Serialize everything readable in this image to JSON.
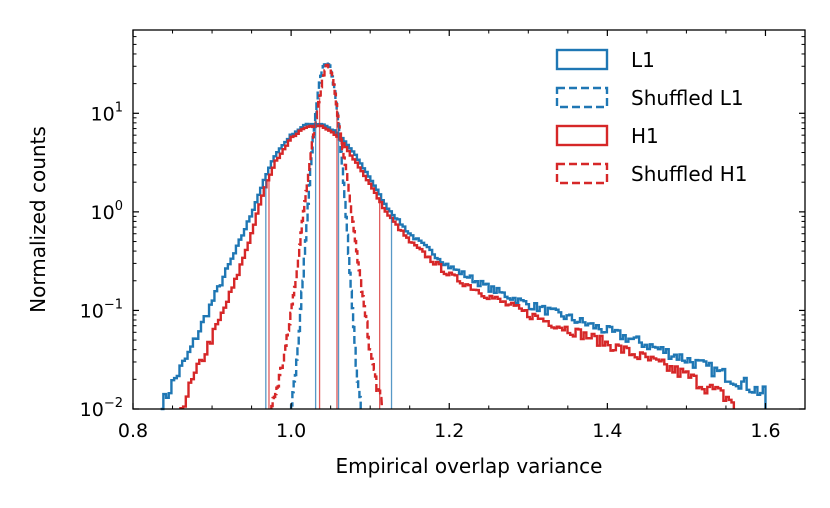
{
  "chart_data": {
    "type": "histogram-step",
    "xlabel": "Empirical overlap variance",
    "ylabel": "Normalized counts",
    "xlim": [
      0.8,
      1.65
    ],
    "ylim": [
      0.01,
      70
    ],
    "yscale": "log",
    "x_ticks": [
      {
        "value": 0.8,
        "label": "0.8"
      },
      {
        "value": 1.0,
        "label": "1.0"
      },
      {
        "value": 1.2,
        "label": "1.2"
      },
      {
        "value": 1.4,
        "label": "1.4"
      },
      {
        "value": 1.6,
        "label": "1.6"
      }
    ],
    "y_ticks": [
      {
        "value": 0.01,
        "base": "10",
        "exp": "−2"
      },
      {
        "value": 0.1,
        "base": "10",
        "exp": "−1"
      },
      {
        "value": 1,
        "base": "10",
        "exp": "0"
      },
      {
        "value": 10,
        "base": "10",
        "exp": "1"
      }
    ],
    "legend_position": "top-right",
    "series": [
      {
        "name": "L1",
        "color": "#1f77b4",
        "style": "solid",
        "points": [
          [
            0.835,
            0.01
          ],
          [
            0.85,
            0.018
          ],
          [
            0.87,
            0.035
          ],
          [
            0.89,
            0.08
          ],
          [
            0.91,
            0.18
          ],
          [
            0.93,
            0.4
          ],
          [
            0.95,
            0.95
          ],
          [
            0.965,
            2.0
          ],
          [
            0.98,
            3.8
          ],
          [
            1.0,
            6.0
          ],
          [
            1.02,
            7.8
          ],
          [
            1.04,
            7.8
          ],
          [
            1.06,
            6.2
          ],
          [
            1.08,
            3.9
          ],
          [
            1.1,
            2.2
          ],
          [
            1.12,
            1.15
          ],
          [
            1.15,
            0.6
          ],
          [
            1.2,
            0.28
          ],
          [
            1.25,
            0.17
          ],
          [
            1.3,
            0.115
          ],
          [
            1.35,
            0.085
          ],
          [
            1.4,
            0.062
          ],
          [
            1.45,
            0.045
          ],
          [
            1.5,
            0.032
          ],
          [
            1.55,
            0.022
          ],
          [
            1.58,
            0.017
          ],
          [
            1.6,
            0.014
          ]
        ]
      },
      {
        "name": "Shuffled L1",
        "color": "#1f77b4",
        "style": "dashed",
        "points": [
          [
            1.0,
            0.01
          ],
          [
            1.005,
            0.02
          ],
          [
            1.01,
            0.06
          ],
          [
            1.015,
            0.2
          ],
          [
            1.02,
            0.8
          ],
          [
            1.025,
            3.0
          ],
          [
            1.03,
            9.0
          ],
          [
            1.035,
            19
          ],
          [
            1.04,
            30
          ],
          [
            1.045,
            34
          ],
          [
            1.05,
            29
          ],
          [
            1.055,
            17
          ],
          [
            1.06,
            8.0
          ],
          [
            1.065,
            2.8
          ],
          [
            1.07,
            0.8
          ],
          [
            1.075,
            0.2
          ],
          [
            1.08,
            0.05
          ],
          [
            1.085,
            0.015
          ],
          [
            1.088,
            0.01
          ]
        ]
      },
      {
        "name": "H1",
        "color": "#d62728",
        "style": "solid",
        "points": [
          [
            0.86,
            0.01
          ],
          [
            0.87,
            0.015
          ],
          [
            0.89,
            0.035
          ],
          [
            0.91,
            0.08
          ],
          [
            0.93,
            0.2
          ],
          [
            0.95,
            0.6
          ],
          [
            0.965,
            1.6
          ],
          [
            0.98,
            3.2
          ],
          [
            1.0,
            5.6
          ],
          [
            1.02,
            7.4
          ],
          [
            1.04,
            7.4
          ],
          [
            1.06,
            5.7
          ],
          [
            1.08,
            3.4
          ],
          [
            1.1,
            1.9
          ],
          [
            1.12,
            1.0
          ],
          [
            1.15,
            0.5
          ],
          [
            1.2,
            0.23
          ],
          [
            1.25,
            0.14
          ],
          [
            1.3,
            0.092
          ],
          [
            1.35,
            0.065
          ],
          [
            1.4,
            0.046
          ],
          [
            1.45,
            0.032
          ],
          [
            1.5,
            0.022
          ],
          [
            1.53,
            0.016
          ],
          [
            1.56,
            0.012
          ]
        ]
      },
      {
        "name": "Shuffled H1",
        "color": "#d62728",
        "style": "dashed",
        "points": [
          [
            0.975,
            0.01
          ],
          [
            0.985,
            0.02
          ],
          [
            0.995,
            0.05
          ],
          [
            1.005,
            0.18
          ],
          [
            1.015,
            0.9
          ],
          [
            1.025,
            4.0
          ],
          [
            1.035,
            13
          ],
          [
            1.04,
            22
          ],
          [
            1.045,
            32
          ],
          [
            1.05,
            28
          ],
          [
            1.055,
            18
          ],
          [
            1.06,
            8.0
          ],
          [
            1.07,
            2.5
          ],
          [
            1.08,
            0.6
          ],
          [
            1.09,
            0.15
          ],
          [
            1.1,
            0.04
          ],
          [
            1.11,
            0.015
          ],
          [
            1.115,
            0.01
          ]
        ]
      }
    ],
    "vertical_markers": [
      {
        "series": "L1",
        "color": "#1f77b4",
        "x": [
          0.968,
          1.127
        ]
      },
      {
        "series": "H1",
        "color": "#d62728",
        "x": [
          0.972,
          1.112
        ]
      },
      {
        "series": "Shuffled L1",
        "color": "#1f77b4",
        "x": [
          1.031,
          1.06
        ]
      },
      {
        "series": "Shuffled H1",
        "color": "#d62728",
        "x": [
          1.036,
          1.058
        ]
      }
    ]
  }
}
